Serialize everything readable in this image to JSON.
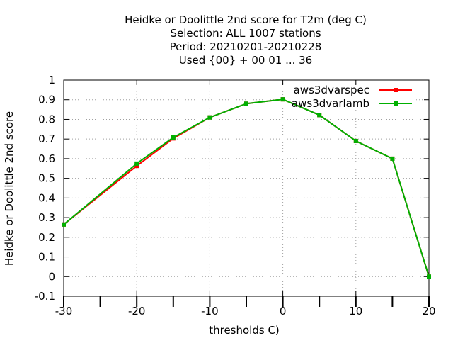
{
  "chart_data": {
    "type": "line",
    "title_lines": [
      "Heidke or Doolittle 2nd score  for T2m (deg C)",
      "Selection: ALL   1007 stations",
      "Period: 20210201-20210228",
      "Used {00} + 00 01 ... 36"
    ],
    "xlabel": "thresholds C)",
    "ylabel": "Heidke or Doolittle 2nd score",
    "xlim": [
      -30,
      20
    ],
    "ylim": [
      -0.1,
      1.0
    ],
    "x_ticks": [
      -30,
      -20,
      -10,
      0,
      10,
      20
    ],
    "x_tick_labels": [
      "-30",
      "-20",
      "-10",
      "0",
      "10",
      "20"
    ],
    "x_minor_ticks": [
      -25,
      -15,
      -5,
      5,
      15
    ],
    "y_ticks": [
      -0.1,
      0,
      0.1,
      0.2,
      0.3,
      0.4,
      0.5,
      0.6,
      0.7,
      0.8,
      0.9,
      1.0
    ],
    "y_tick_labels": [
      "-0.1",
      "0",
      "0.1",
      "0.2",
      "0.3",
      "0.4",
      "0.5",
      "0.6",
      "0.7",
      "0.8",
      "0.9",
      "1"
    ],
    "grid": true,
    "legend_position": "top-right",
    "series": [
      {
        "name": "aws3dvarspec",
        "color": "#ff0000",
        "x": [
          -30,
          -20,
          -15,
          -10,
          -5,
          0,
          5,
          10,
          15,
          20
        ],
        "y": [
          0.265,
          0.563,
          0.703,
          0.81,
          0.88,
          0.902,
          0.822,
          0.69,
          0.6,
          0.0
        ]
      },
      {
        "name": "aws3dvarlamb",
        "color": "#00b000",
        "x": [
          -30,
          -20,
          -15,
          -10,
          -5,
          0,
          5,
          10,
          15,
          20
        ],
        "y": [
          0.265,
          0.575,
          0.708,
          0.81,
          0.88,
          0.902,
          0.822,
          0.69,
          0.6,
          0.0
        ]
      }
    ]
  }
}
